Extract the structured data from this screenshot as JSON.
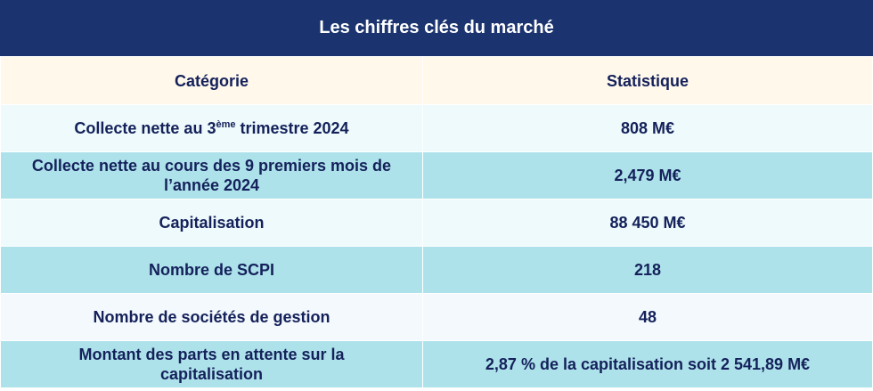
{
  "title": "Les chiffres clés du marché",
  "headers": {
    "category": "Catégorie",
    "statistic": "Statistique"
  },
  "rows": [
    {
      "category_prefix": "Collecte nette au 3",
      "category_sup": "ème",
      "category_suffix": " trimestre 2024",
      "value": "808 M€"
    },
    {
      "category": "Collecte nette au cours des 9 premiers mois de l’année 2024",
      "value": "2,479 M€"
    },
    {
      "category": "Capitalisation",
      "value": "88 450 M€"
    },
    {
      "category": "Nombre de SCPI",
      "value": "218"
    },
    {
      "category": "Nombre de sociétés de gestion",
      "value": "48"
    },
    {
      "category": "Montant des parts en attente sur la capitalisation",
      "value": "2,87 % de la capitalisation soit 2 541,89 M€"
    }
  ],
  "colors": {
    "title_bg": "#1b3470",
    "header_bg": "#fff8eb",
    "row_light": "#eefafb",
    "row_dark": "#aee2eb",
    "text": "#14215a"
  }
}
